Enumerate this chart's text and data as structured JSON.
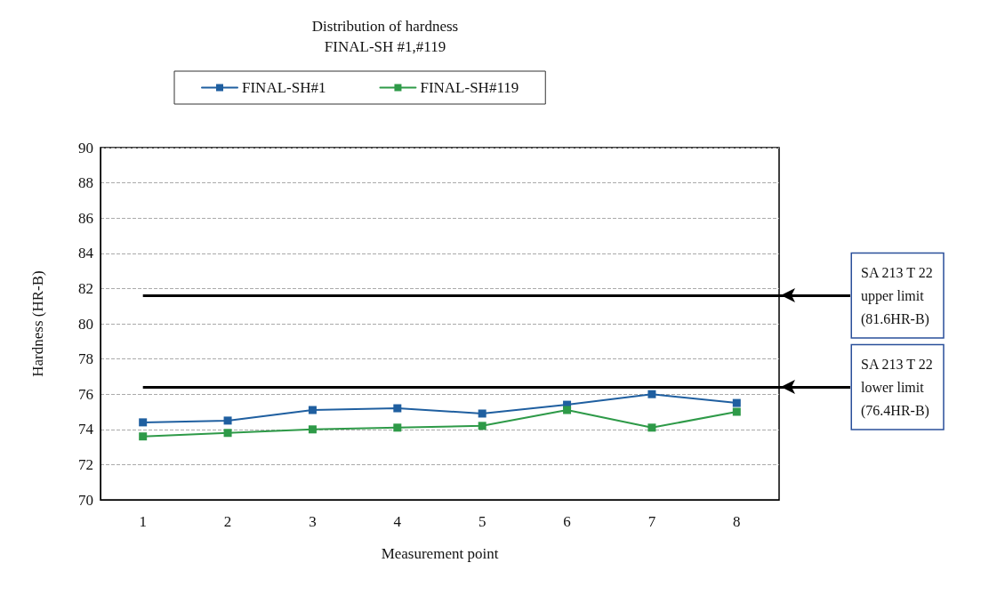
{
  "chart_data": {
    "type": "line",
    "title": "Distribution of hardness",
    "subtitle": "FINAL-SH #1,#119",
    "xlabel": "Measurement point",
    "ylabel": "Hardness (HR-B)",
    "categories": [
      "1",
      "2",
      "3",
      "4",
      "5",
      "6",
      "7",
      "8"
    ],
    "series": [
      {
        "name": "FINAL-SH#1",
        "color": "#1f5fa0",
        "values": [
          74.4,
          74.5,
          75.1,
          75.2,
          74.9,
          75.4,
          76.0,
          75.5
        ]
      },
      {
        "name": "FINAL-SH#119",
        "color": "#2e9a48",
        "values": [
          73.6,
          73.8,
          74.0,
          74.1,
          74.2,
          75.1,
          74.1,
          75.0
        ]
      }
    ],
    "ylim": [
      70,
      90
    ],
    "yticks": [
      70,
      72,
      74,
      76,
      78,
      80,
      82,
      84,
      86,
      88,
      90
    ],
    "ref_lines": [
      {
        "axis": "y",
        "value": 81.6,
        "label": "SA 213 T 22\nupper limit\n(81.6HR-B)",
        "color": "#000000"
      },
      {
        "axis": "y",
        "value": 76.4,
        "label": "SA 213 T 22\nlower limit\n(76.4HR-B)",
        "color": "#000000"
      }
    ],
    "grid": "y",
    "legend": "top",
    "marker": "square",
    "line_style": "solid"
  }
}
